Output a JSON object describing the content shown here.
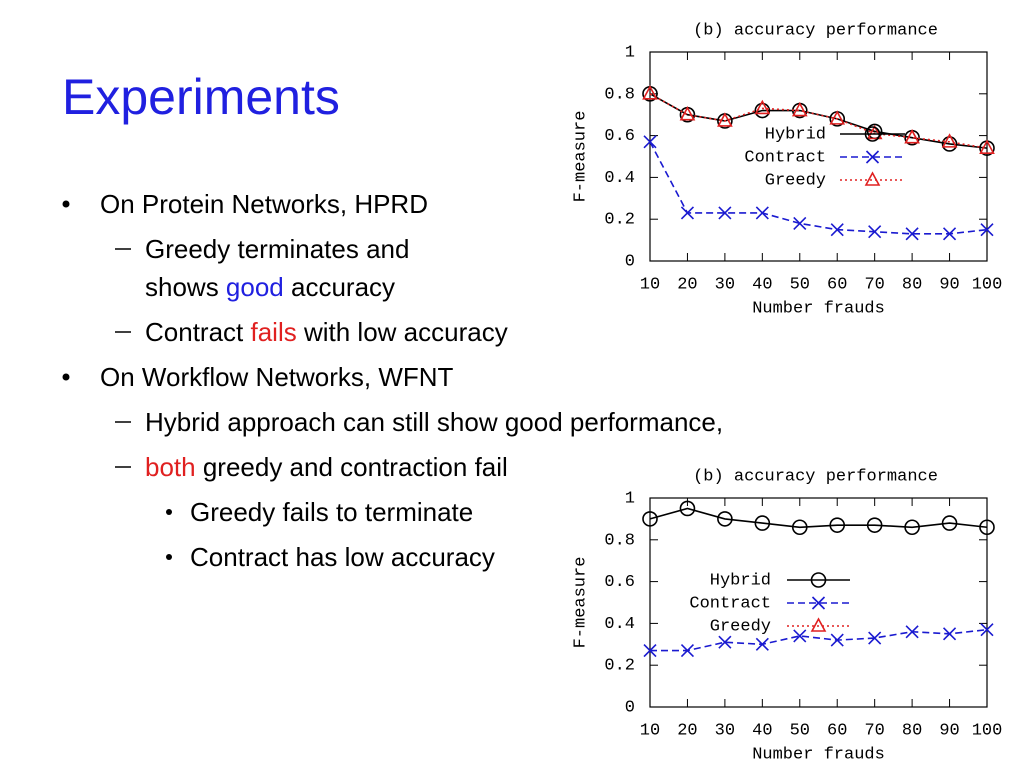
{
  "slide": {
    "title": "Experiments",
    "items": [
      {
        "level": 1,
        "lines": [
          [
            {
              "text": "On Protein Networks, HPRD"
            }
          ]
        ]
      },
      {
        "level": 2,
        "lines": [
          [
            {
              "text": "Greedy terminates and"
            }
          ],
          [
            {
              "text": "shows "
            },
            {
              "text": "good",
              "color": "#2020e0"
            },
            {
              "text": " accuracy"
            }
          ]
        ]
      },
      {
        "level": 2,
        "lines": [
          [
            {
              "text": "Contract "
            },
            {
              "text": "fails",
              "color": "#e02020"
            },
            {
              "text": " with low accuracy"
            }
          ]
        ]
      },
      {
        "level": 1,
        "lines": [
          [
            {
              "text": "On Workflow Networks, WFNT"
            }
          ]
        ]
      },
      {
        "level": 2,
        "lines": [
          [
            {
              "text": "Hybrid approach can still show good performance,"
            }
          ]
        ]
      },
      {
        "level": 2,
        "lines": [
          [
            {
              "text": "both",
              "color": "#e02020"
            },
            {
              "text": " greedy and contraction fail"
            }
          ]
        ]
      },
      {
        "level": 3,
        "lines": [
          [
            {
              "text": "Greedy fails to terminate"
            }
          ]
        ]
      },
      {
        "level": 3,
        "lines": [
          [
            {
              "text": "Contract has low accuracy"
            }
          ]
        ]
      }
    ]
  },
  "chart_data": [
    {
      "type": "line",
      "title": "(b) accuracy performance",
      "x_label": "Number frauds",
      "y_label": "F-measure",
      "x": [
        10,
        20,
        30,
        40,
        50,
        60,
        70,
        80,
        90,
        100
      ],
      "xlim": [
        10,
        100
      ],
      "xticks": [
        10,
        20,
        30,
        40,
        50,
        60,
        70,
        80,
        90,
        100
      ],
      "ylim": [
        0,
        1
      ],
      "yticks": [
        0,
        0.2,
        0.4,
        0.6,
        0.8,
        1
      ],
      "legend": "right",
      "series": [
        {
          "name": "Hybrid",
          "color": "#000000",
          "marker": "circle",
          "dash": "solid",
          "values": [
            0.8,
            0.7,
            0.67,
            0.72,
            0.72,
            0.68,
            0.62,
            0.59,
            0.56,
            0.54
          ]
        },
        {
          "name": "Contract",
          "color": "#1a1ad0",
          "marker": "x",
          "dash": "dashed",
          "values": [
            0.57,
            0.23,
            0.23,
            0.23,
            0.18,
            0.15,
            0.14,
            0.13,
            0.13,
            0.15
          ]
        },
        {
          "name": "Greedy",
          "color": "#e02020",
          "marker": "triangle",
          "dash": "dotted",
          "values": [
            0.8,
            0.7,
            0.67,
            0.73,
            0.72,
            0.68,
            0.61,
            0.59,
            0.57,
            0.54
          ]
        }
      ]
    },
    {
      "type": "line",
      "title": "(b) accuracy performance",
      "x_label": "Number frauds",
      "y_label": "F-measure",
      "x": [
        10,
        20,
        30,
        40,
        50,
        60,
        70,
        80,
        90,
        100
      ],
      "xlim": [
        10,
        100
      ],
      "xticks": [
        10,
        20,
        30,
        40,
        50,
        60,
        70,
        80,
        90,
        100
      ],
      "ylim": [
        0,
        1
      ],
      "yticks": [
        0,
        0.2,
        0.4,
        0.6,
        0.8,
        1
      ],
      "legend": "right",
      "series": [
        {
          "name": "Hybrid",
          "color": "#000000",
          "marker": "circle",
          "dash": "solid",
          "values": [
            0.9,
            0.95,
            0.9,
            0.88,
            0.86,
            0.87,
            0.87,
            0.86,
            0.88,
            0.86
          ]
        },
        {
          "name": "Contract",
          "color": "#1a1ad0",
          "marker": "x",
          "dash": "dashed",
          "values": [
            0.27,
            0.27,
            0.31,
            0.3,
            0.34,
            0.32,
            0.33,
            0.36,
            0.35,
            0.37
          ]
        },
        {
          "name": "Greedy",
          "color": "#e02020",
          "marker": "triangle",
          "dash": "dotted",
          "values": [
            null,
            null,
            null,
            null,
            null,
            null,
            null,
            null,
            null,
            null
          ]
        }
      ]
    }
  ]
}
